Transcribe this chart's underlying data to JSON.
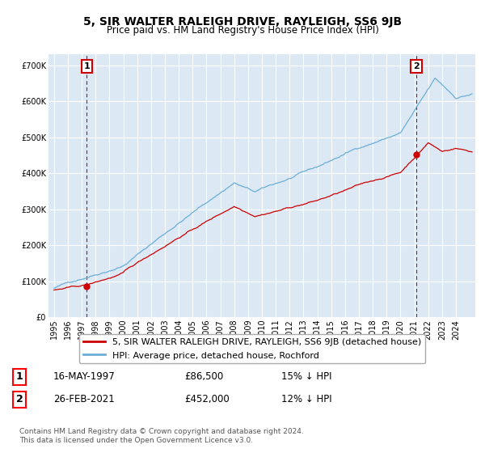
{
  "title": "5, SIR WALTER RALEIGH DRIVE, RAYLEIGH, SS6 9JB",
  "subtitle": "Price paid vs. HM Land Registry's House Price Index (HPI)",
  "ylim": [
    0,
    730000
  ],
  "yticks": [
    0,
    100000,
    200000,
    300000,
    400000,
    500000,
    600000,
    700000
  ],
  "ytick_labels": [
    "£0",
    "£100K",
    "£200K",
    "£300K",
    "£400K",
    "£500K",
    "£600K",
    "£700K"
  ],
  "xlim_start": 1994.6,
  "xlim_end": 2025.4,
  "plot_bg": "#dce9f5",
  "grid_color": "#ffffff",
  "red_line_color": "#cc0000",
  "blue_line_color": "#6baed6",
  "point1_x": 1997.37,
  "point1_y": 86500,
  "point2_x": 2021.15,
  "point2_y": 452000,
  "legend_label_red": "5, SIR WALTER RALEIGH DRIVE, RAYLEIGH, SS6 9JB (detached house)",
  "legend_label_blue": "HPI: Average price, detached house, Rochford",
  "annotation1_date": "16-MAY-1997",
  "annotation1_price": "£86,500",
  "annotation1_hpi": "15% ↓ HPI",
  "annotation2_date": "26-FEB-2021",
  "annotation2_price": "£452,000",
  "annotation2_hpi": "12% ↓ HPI",
  "footer": "Contains HM Land Registry data © Crown copyright and database right 2024.\nThis data is licensed under the Open Government Licence v3.0.",
  "title_fontsize": 10,
  "subtitle_fontsize": 8.5,
  "tick_fontsize": 7,
  "legend_fontsize": 8,
  "annot_fontsize": 8.5,
  "footer_fontsize": 6.5
}
